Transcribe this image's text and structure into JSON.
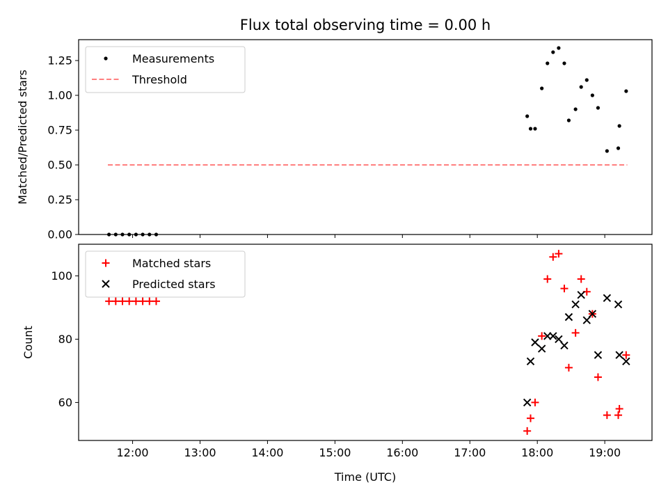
{
  "chart_data": [
    {
      "type": "scatter",
      "title": "Flux total observing time = 0.00 h",
      "xlabel": "",
      "ylabel": "Matched/Predicted stars",
      "xlim_hours": [
        11.2,
        19.7
      ],
      "ylim": [
        0,
        1.4
      ],
      "yticks": [
        0.0,
        0.25,
        0.5,
        0.75,
        1.0,
        1.25
      ],
      "ytick_labels": [
        "0.00",
        "0.25",
        "0.50",
        "0.75",
        "1.00",
        "1.25"
      ],
      "legend_position": "upper-left",
      "series": [
        {
          "name": "Measurements",
          "marker": "dot",
          "color": "#000000",
          "x": [
            "11:39",
            "11:45",
            "11:51",
            "11:57",
            "12:03",
            "12:09",
            "12:15",
            "12:21",
            "17:51",
            "17:54",
            "17:58",
            "18:04",
            "18:09",
            "18:14",
            "18:19",
            "18:24",
            "18:28",
            "18:34",
            "18:39",
            "18:44",
            "18:49",
            "18:54",
            "19:02",
            "19:12",
            "19:13",
            "19:19"
          ],
          "y": [
            0,
            0,
            0,
            0,
            0,
            0,
            0,
            0,
            0.85,
            0.76,
            0.76,
            1.05,
            1.23,
            1.31,
            1.34,
            1.23,
            0.82,
            0.9,
            1.06,
            1.11,
            1.0,
            0.91,
            0.6,
            0.62,
            0.78,
            1.03
          ]
        },
        {
          "name": "Threshold",
          "line": "dashed",
          "color": "#ff7f7f",
          "x": [
            "11:38",
            "19:20"
          ],
          "y": [
            0.5,
            0.5
          ]
        }
      ]
    },
    {
      "type": "scatter",
      "title": "",
      "xlabel": "Time (UTC)",
      "ylabel": "Count",
      "xlim_hours": [
        11.2,
        19.7
      ],
      "ylim": [
        48,
        110
      ],
      "yticks": [
        60,
        80,
        100
      ],
      "ytick_labels": [
        "60",
        "80",
        "100"
      ],
      "xticks_hours": [
        12,
        13,
        14,
        15,
        16,
        17,
        18,
        19
      ],
      "xtick_labels": [
        "12:00",
        "13:00",
        "14:00",
        "15:00",
        "16:00",
        "17:00",
        "18:00",
        "19:00"
      ],
      "legend_position": "upper-left",
      "series": [
        {
          "name": "Matched stars",
          "marker": "plus",
          "color": "#ff0000",
          "x": [
            "11:39",
            "11:45",
            "11:51",
            "11:57",
            "12:03",
            "12:09",
            "12:15",
            "12:21",
            "17:51",
            "17:54",
            "17:58",
            "18:04",
            "18:09",
            "18:14",
            "18:19",
            "18:24",
            "18:28",
            "18:34",
            "18:39",
            "18:44",
            "18:49",
            "18:54",
            "19:02",
            "19:12",
            "19:13",
            "19:19"
          ],
          "y": [
            92,
            92,
            92,
            92,
            92,
            92,
            92,
            92,
            51,
            55,
            60,
            81,
            99,
            106,
            107,
            96,
            71,
            82,
            99,
            95,
            88,
            68,
            56,
            56,
            58,
            75
          ]
        },
        {
          "name": "Predicted stars",
          "marker": "x",
          "color": "#000000",
          "x": [
            "17:51",
            "17:54",
            "17:58",
            "18:04",
            "18:09",
            "18:14",
            "18:19",
            "18:24",
            "18:28",
            "18:34",
            "18:39",
            "18:44",
            "18:49",
            "18:54",
            "19:02",
            "19:12",
            "19:13",
            "19:19"
          ],
          "y": [
            60,
            73,
            79,
            77,
            81,
            81,
            80,
            78,
            87,
            91,
            94,
            86,
            88,
            75,
            93,
            91,
            75,
            73
          ]
        }
      ]
    }
  ]
}
